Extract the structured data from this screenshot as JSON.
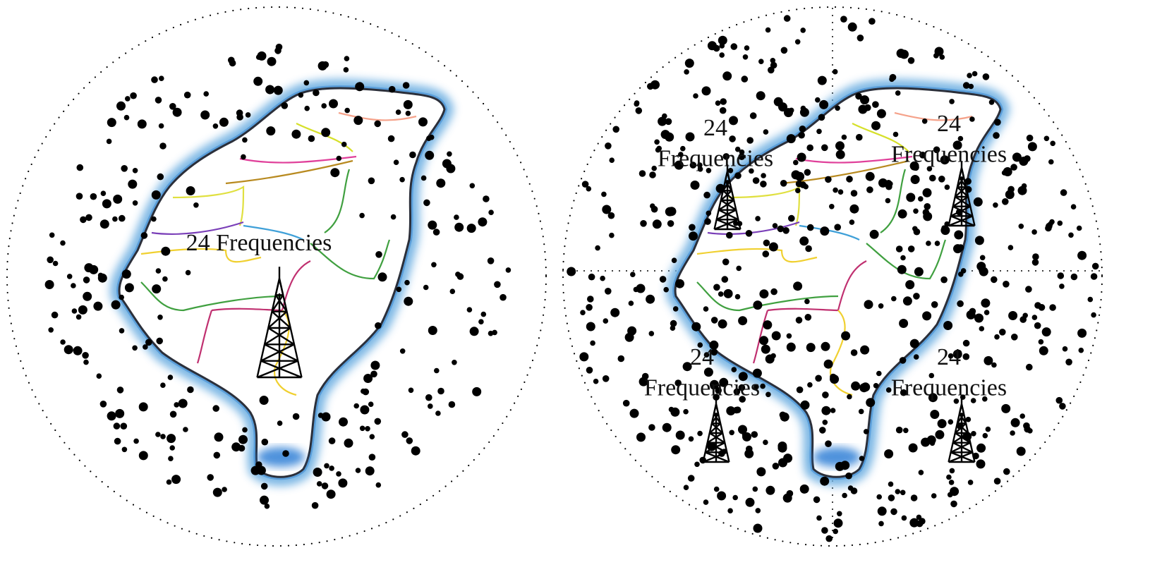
{
  "panels": [
    {
      "id": "single-tower",
      "labels": [
        {
          "lines": [
            "24 Frequencies"
          ]
        }
      ],
      "tower_count": 1
    },
    {
      "id": "four-towers",
      "labels": [
        {
          "lines": [
            "24",
            "Frequencies"
          ]
        },
        {
          "lines": [
            "24",
            "Frequencies"
          ]
        },
        {
          "lines": [
            "24",
            "Frequencies"
          ]
        },
        {
          "lines": [
            "24",
            "Frequencies"
          ]
        }
      ],
      "tower_count": 4
    }
  ],
  "colors": {
    "coast_outer": "#6fb0e2",
    "coast_inner": "#3a86cf",
    "outline": "#2b2f3a",
    "dots": "#000000",
    "boundaries": [
      "#f5a28a",
      "#d6e02a",
      "#e0409a",
      "#b88a20",
      "#e0e040",
      "#7a3fb8",
      "#3fa0d8",
      "#f0d030",
      "#40a040",
      "#c03070"
    ]
  },
  "icons": [
    "radio-tower-icon"
  ]
}
